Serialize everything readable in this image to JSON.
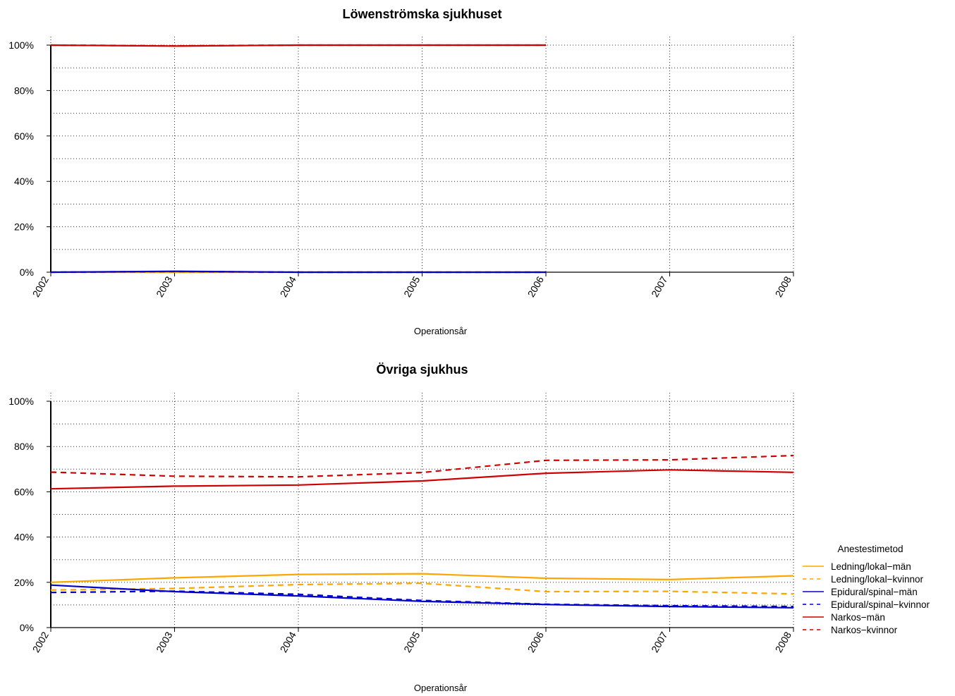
{
  "legend": {
    "title": "Anestestimetod",
    "entries": [
      {
        "label": "Ledning/lokal−män",
        "color": "#ffa500",
        "dash": false
      },
      {
        "label": "Ledning/lokal−kvinnor",
        "color": "#ffa500",
        "dash": true
      },
      {
        "label": "Epidural/spinal−män",
        "color": "#0000cd",
        "dash": false
      },
      {
        "label": "Epidural/spinal−kvinnor",
        "color": "#0000cd",
        "dash": true
      },
      {
        "label": "Narkos−män",
        "color": "#cd0000",
        "dash": false
      },
      {
        "label": "Narkos−kvinnor",
        "color": "#cd0000",
        "dash": true
      }
    ]
  },
  "chart_data": [
    {
      "type": "line",
      "title": "Löwenströmska sjukhuset",
      "xlabel": "Operationsår",
      "ylabel": "",
      "x": [
        2002,
        2003,
        2004,
        2005,
        2006
      ],
      "xlim": [
        2002,
        2008
      ],
      "ylim": [
        0,
        100
      ],
      "xticks": [
        "2002",
        "2003",
        "2004",
        "2005",
        "2006",
        "2007",
        "2008"
      ],
      "yticks": [
        "0%",
        "20%",
        "40%",
        "60%",
        "80%",
        "100%"
      ],
      "grid": true,
      "series": [
        {
          "name": "Ledning/lokal−män",
          "color": "#ffa500",
          "dash": false,
          "values": [
            0,
            0,
            0,
            0,
            0
          ]
        },
        {
          "name": "Ledning/lokal−kvinnor",
          "color": "#ffa500",
          "dash": true,
          "values": [
            0,
            0,
            0,
            0,
            0
          ]
        },
        {
          "name": "Epidural/spinal−män",
          "color": "#0000cd",
          "dash": false,
          "values": [
            0,
            0.4,
            0,
            0,
            0
          ]
        },
        {
          "name": "Epidural/spinal−kvinnor",
          "color": "#0000cd",
          "dash": true,
          "values": [
            0,
            0.3,
            0,
            0,
            0
          ]
        },
        {
          "name": "Narkos−män",
          "color": "#cd0000",
          "dash": false,
          "values": [
            100,
            99.6,
            100,
            100,
            100
          ]
        },
        {
          "name": "Narkos−kvinnor",
          "color": "#cd0000",
          "dash": true,
          "values": [
            100,
            99.7,
            100,
            100,
            100
          ]
        }
      ]
    },
    {
      "type": "line",
      "title": "Övriga sjukhus",
      "xlabel": "Operationsår",
      "ylabel": "",
      "x": [
        2002,
        2003,
        2004,
        2005,
        2006,
        2007,
        2008
      ],
      "xlim": [
        2002,
        2008
      ],
      "ylim": [
        0,
        100
      ],
      "xticks": [
        "2002",
        "2003",
        "2004",
        "2005",
        "2006",
        "2007",
        "2008"
      ],
      "yticks": [
        "0%",
        "20%",
        "40%",
        "60%",
        "80%",
        "100%"
      ],
      "grid": true,
      "legend": "right",
      "series": [
        {
          "name": "Ledning/lokal−män",
          "color": "#ffa500",
          "dash": false,
          "values": [
            20.0,
            22.0,
            23.5,
            23.8,
            21.8,
            21.2,
            22.9
          ]
        },
        {
          "name": "Ledning/lokal−kvinnor",
          "color": "#ffa500",
          "dash": true,
          "values": [
            16.6,
            17.3,
            19.0,
            19.6,
            15.9,
            16.0,
            14.9
          ]
        },
        {
          "name": "Epidural/spinal−män",
          "color": "#0000cd",
          "dash": false,
          "values": [
            18.8,
            15.9,
            14.0,
            11.6,
            10.2,
            9.3,
            8.8
          ]
        },
        {
          "name": "Epidural/spinal−kvinnor",
          "color": "#0000cd",
          "dash": true,
          "values": [
            15.5,
            16.1,
            14.7,
            12.0,
            10.3,
            9.7,
            9.3
          ]
        },
        {
          "name": "Narkos−män",
          "color": "#cd0000",
          "dash": false,
          "values": [
            61.3,
            62.5,
            63.0,
            64.8,
            68.2,
            69.7,
            68.6
          ]
        },
        {
          "name": "Narkos−kvinnor",
          "color": "#cd0000",
          "dash": true,
          "values": [
            68.7,
            66.9,
            66.6,
            68.5,
            73.9,
            74.1,
            76.0
          ]
        }
      ]
    }
  ]
}
